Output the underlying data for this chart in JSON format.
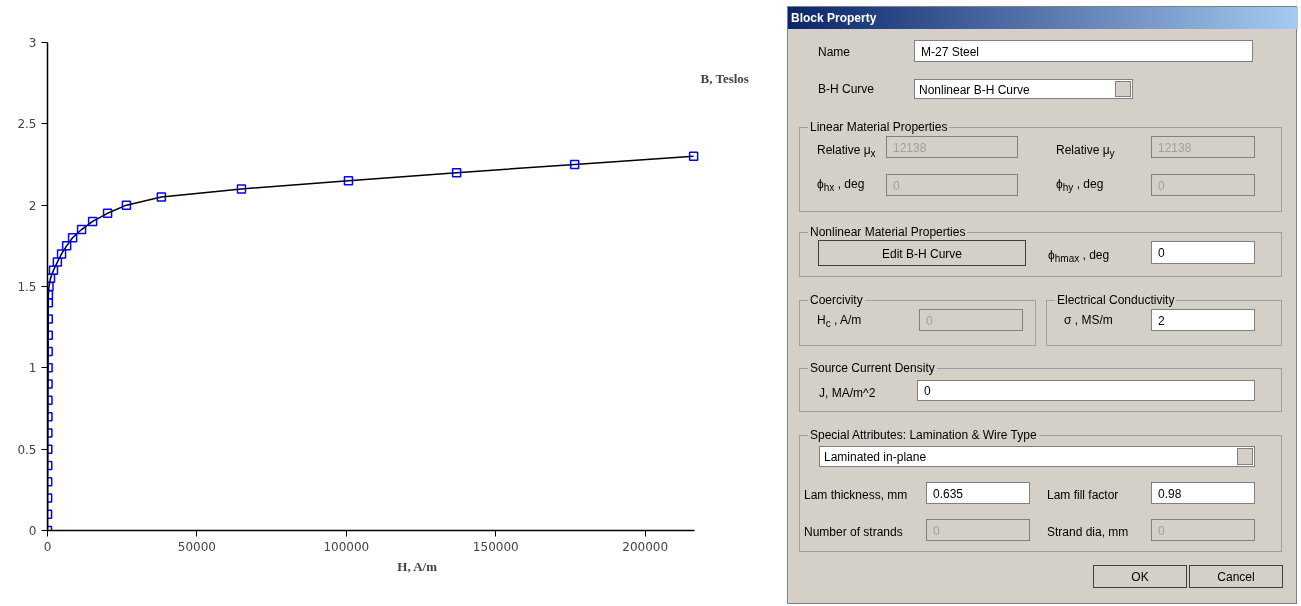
{
  "chart_data": [
    {
      "type": "scatter",
      "xlabel": "H, A/m",
      "ylabel": "B, Teslos",
      "grid": false,
      "x": [
        0,
        20,
        40,
        60,
        80,
        100,
        120,
        140,
        160,
        180,
        200,
        220,
        240,
        260,
        280,
        300,
        500,
        1000,
        2000,
        3300,
        4700,
        6400,
        8400,
        11400,
        15100,
        20100,
        26400,
        38100,
        64900,
        100700,
        136900,
        176400,
        216200
      ],
      "xlim": [
        0,
        216500
      ],
      "xticks": [
        0,
        50000,
        100000,
        150000,
        200000
      ],
      "ylim": [
        0,
        3
      ],
      "yticks": [
        0,
        0.5,
        1,
        1.5,
        2,
        2.5,
        3
      ],
      "series": [
        {
          "type": "line",
          "color": "#000000",
          "values": [
            0,
            0.1,
            0.2,
            0.3,
            0.4,
            0.5,
            0.6,
            0.7,
            0.8,
            0.9,
            1.0,
            1.1,
            1.2,
            1.3,
            1.4,
            1.45,
            1.5,
            1.55,
            1.6,
            1.65,
            1.7,
            1.75,
            1.8,
            1.85,
            1.9,
            1.95,
            2.0,
            2.05,
            2.1,
            2.15,
            2.2,
            2.25,
            2.3
          ]
        },
        {
          "type": "scatter",
          "color": "#0000ff",
          "marker": "square",
          "values": [
            0,
            0.1,
            0.2,
            0.3,
            0.4,
            0.5,
            0.6,
            0.7,
            0.8,
            0.9,
            1.0,
            1.1,
            1.2,
            1.3,
            1.4,
            1.45,
            1.5,
            1.55,
            1.6,
            1.65,
            1.7,
            1.75,
            1.8,
            1.85,
            1.9,
            1.95,
            2.0,
            2.05,
            2.1,
            2.15,
            2.2,
            2.25,
            2.3
          ]
        }
      ]
    },
    {
      "type": "other",
      "title": "Block Property",
      "annotations": [
        "Name",
        "M-27 Steel",
        "B-H Curve",
        "Nonlinear B-H Curve",
        "Linear Material Properties",
        "Relative μ$_{x}$",
        "12138",
        "Relative μ$_{y}$",
        "12138",
        "ϕ$_{hx}$ , deg",
        "0",
        "ϕ$_{hy}$ , deg",
        "0",
        "Nonlinear Material Properties",
        "Edit B-H Curve",
        "ϕ$_{hmax}$ , deg",
        "0",
        "Coercivity",
        "H$_{c}$ , A/m",
        "0",
        "Electrical Conductivity",
        "σ , MS/m",
        "2",
        "Source Current Density",
        "J, MA/m^2",
        "0",
        "Special Attributes:  Lamination & Wire Type",
        "Laminated in-plane",
        "Lam thickness, mm",
        "0.635",
        "Lam fill factor",
        "0.98",
        "Number of strands",
        "0",
        "Strand dia, mm",
        "0",
        "OK",
        "Cancel"
      ]
    }
  ]
}
